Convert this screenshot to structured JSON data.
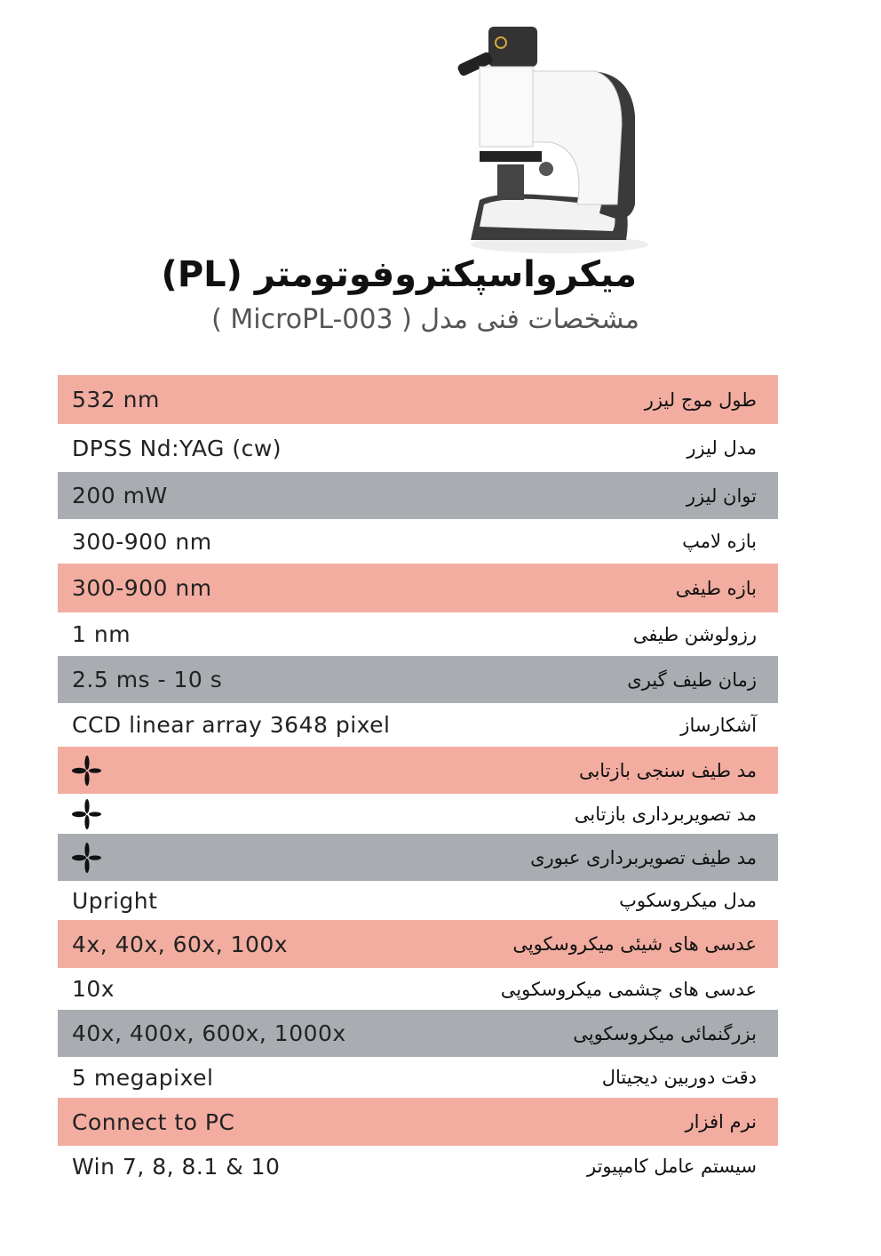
{
  "header": {
    "title": "میکرواسپکتروفوتومتر (PL)",
    "subtitle": "مشخصات فنی مدل ( MicroPL-003 )"
  },
  "colors": {
    "pink": "#f2ada0",
    "gray": "#a9adb2"
  },
  "specs": [
    {
      "label": "طول موج لیزر",
      "value": "532 nm",
      "bg": "pink",
      "h": 55
    },
    {
      "label": "مدل لیزر",
      "value": "DPSS Nd:YAG (cw)",
      "bg": "white",
      "h": 54
    },
    {
      "label": "توان لیزر",
      "value": "200 mW",
      "bg": "gray",
      "h": 53
    },
    {
      "label": "بازه لامپ",
      "value": "300-900 nm",
      "bg": "white",
      "h": 50
    },
    {
      "label": "بازه طیفی",
      "value": "300-900 nm",
      "bg": "pink",
      "h": 55
    },
    {
      "label": "رزولوشن طیفی",
      "value": "1 nm",
      "bg": "white",
      "h": 49
    },
    {
      "label": "زمان طیف گیری",
      "value": "2.5 ms - 10 s",
      "bg": "gray",
      "h": 53
    },
    {
      "label": "آشکارساز",
      "value": "CCD linear array 3648 pixel",
      "bg": "white",
      "h": 49
    },
    {
      "label": "مد  طیف سنجی بازتابی",
      "value": "",
      "icon": "four-petal-check-icon",
      "bg": "pink",
      "h": 53
    },
    {
      "label": "مد  تصویربرداری بازتابی",
      "value": "",
      "icon": "four-petal-check-icon",
      "bg": "white",
      "h": 45
    },
    {
      "label": "مد  طیف تصویربرداری عبوری",
      "value": "",
      "icon": "four-petal-check-icon",
      "bg": "gray",
      "h": 53
    },
    {
      "label": "مدل میکروسکوپ",
      "value": "Upright",
      "bg": "white",
      "h": 44
    },
    {
      "label": "عدسی های شیئی میکروسکوپی",
      "value": "4x, 40x, 60x, 100x",
      "bg": "pink",
      "h": 54
    },
    {
      "label": "عدسی های چشمی میکروسکوپی",
      "value": "10x",
      "bg": "white",
      "h": 47
    },
    {
      "label": "بزرگنمائی میکروسکوپی",
      "value": "40x, 400x, 600x, 1000x",
      "bg": "gray",
      "h": 53
    },
    {
      "label": "دقت دوربین دیجیتال",
      "value": "5 megapixel",
      "bg": "white",
      "h": 46
    },
    {
      "label": "نرم افزار",
      "value": "Connect to PC",
      "bg": "pink",
      "h": 54
    },
    {
      "label": "سیستم عامل کامپیوتر",
      "value": "Win 7, 8, 8.1 & 10",
      "bg": "white",
      "h": 46
    }
  ]
}
